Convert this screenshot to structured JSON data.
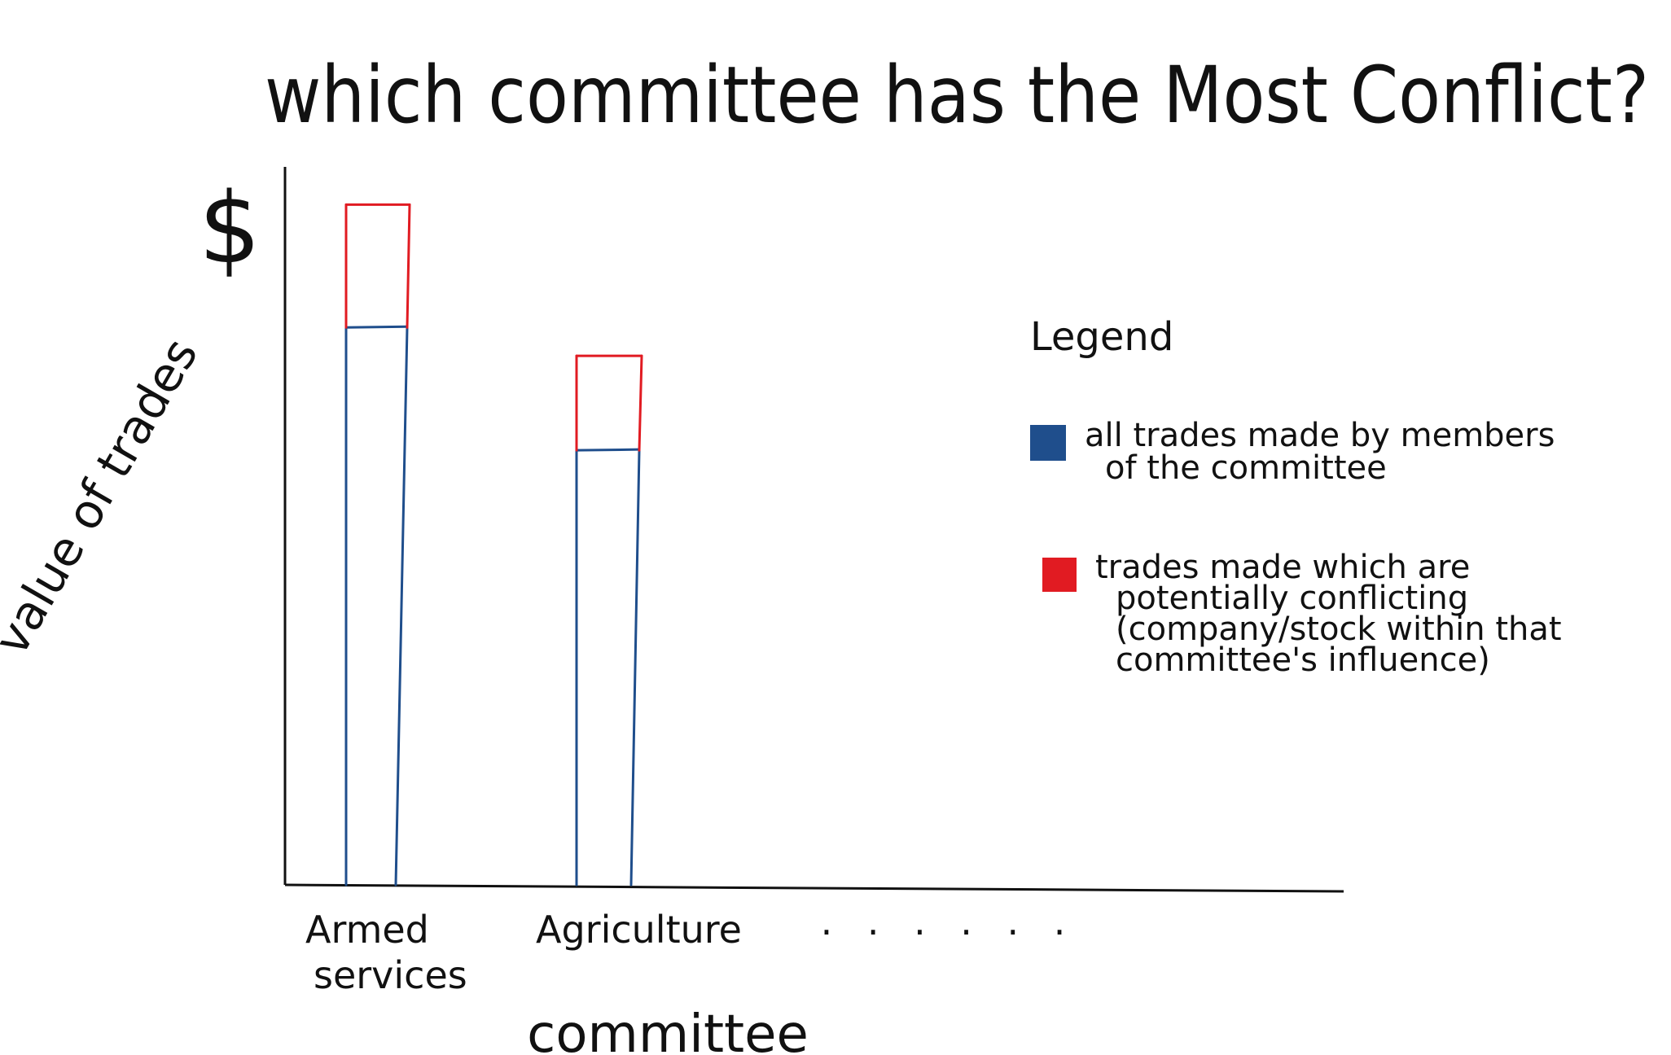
{
  "chart_data": {
    "type": "bar",
    "title": "which committee has the Most Conflict?",
    "ylabel": "value of trades",
    "y_unit": "$",
    "xlabel": "committee",
    "categories": [
      "Armed services",
      "Agriculture"
    ],
    "continuation": ". . . . . .",
    "series": [
      {
        "name": "all trades made by members of the committee",
        "values": [
          5.9,
          4.6
        ],
        "color": "#1f4e8c"
      },
      {
        "name": "trades made which are potentially conflicting (company/stock within that committee's influence)",
        "values": [
          1.3,
          1.0
        ],
        "color": "#e11b22"
      }
    ],
    "stacked": true,
    "ylim": [
      0,
      7.6
    ],
    "legend": {
      "title": "Legend",
      "placement": "right"
    },
    "grid": false,
    "style": "hand-drawn sketch"
  }
}
